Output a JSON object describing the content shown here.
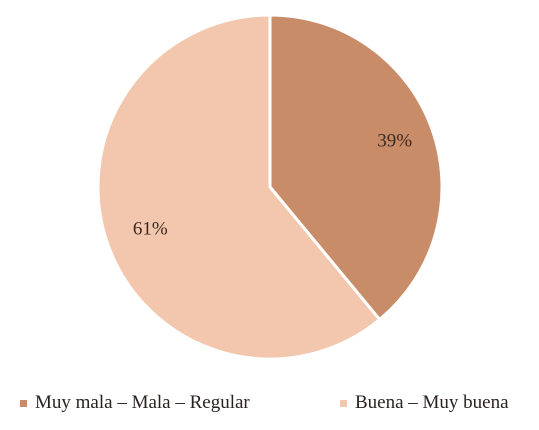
{
  "chart_data": {
    "type": "pie",
    "title": "",
    "legend_position": "bottom",
    "slices": [
      {
        "label": "Muy mala – Mala – Regular",
        "value": 39,
        "display": "39%",
        "color": "#c98c68"
      },
      {
        "label": "Buena – Muy buena",
        "value": 61,
        "display": "61%",
        "color": "#f2c7ad"
      }
    ],
    "slice_border_color": "#ffffff"
  }
}
